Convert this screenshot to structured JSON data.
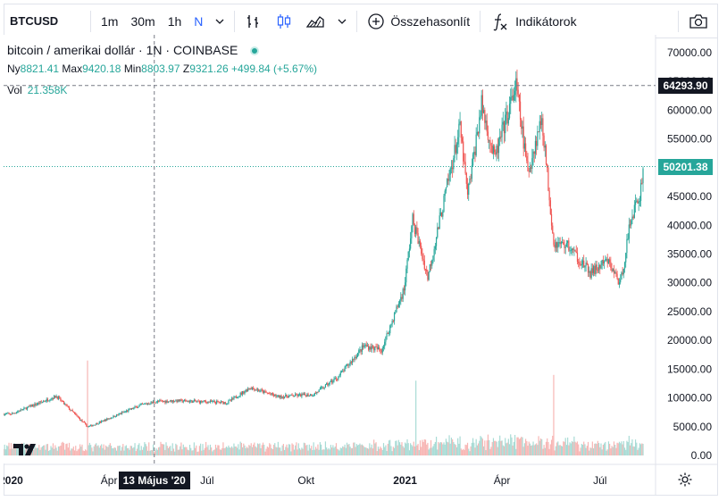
{
  "toolbar": {
    "symbol": "BTCUSD",
    "intervals": [
      "1m",
      "30m",
      "1h",
      "N"
    ],
    "active_interval": "N",
    "compare_label": "Összehasonlít",
    "indicators_label": "Indikátorok",
    "icons": [
      "bar-style-icon",
      "candle-style-icon",
      "area-style-icon",
      "chevron-down-icon",
      "plus-circle-icon",
      "fx-icon",
      "camera-icon"
    ]
  },
  "legend": {
    "title": "bitcoin / amerikai dollár · 1N · COINBASE",
    "open_label": "Ny",
    "open": "8821.41",
    "high_label": "Max",
    "high": "9420.18",
    "low_label": "Min",
    "low": "8803.97",
    "close_label": "Z",
    "close": "9321.26",
    "change": "+499.84 (+5.67%)",
    "vol_label": "Vol",
    "vol": "21.358K"
  },
  "badges": {
    "high_price": "64293.90",
    "last_price": "50201.38",
    "crosshair_date": "13 Május '20"
  },
  "colors": {
    "up": "#26a69a",
    "down": "#ef5350",
    "vol_up": "#a8dbd5",
    "vol_down": "#f7b6b4",
    "high_badge": "#131722",
    "last_badge": "#26a69a"
  },
  "chart_data": {
    "type": "candlestick",
    "y_axis_ticks": [
      "70000.00",
      "65000.00",
      "60000.00",
      "55000.00",
      "50000.00",
      "45000.00",
      "40000.00",
      "35000.00",
      "30000.00",
      "25000.00",
      "20000.00",
      "15000.00",
      "10000.00",
      "5000.00",
      "0.00"
    ],
    "y_ticks_values": [
      70000,
      65000,
      60000,
      55000,
      50000,
      45000,
      40000,
      35000,
      30000,
      25000,
      20000,
      15000,
      10000,
      5000,
      0
    ],
    "ylim": [
      0,
      70000
    ],
    "x_axis_labels": [
      "2020",
      "Ápr",
      "Júl",
      "Okt",
      "2021",
      "Ápr",
      "Júl"
    ],
    "x_start": "2019-12-25",
    "x_end": "2021-08-10",
    "series": [
      {
        "name": "BTCUSD",
        "key_points": [
          [
            "2020-01-01",
            7200
          ],
          [
            "2020-02-12",
            10300
          ],
          [
            "2020-03-12",
            5000
          ],
          [
            "2020-03-16",
            5200
          ],
          [
            "2020-04-30",
            8700
          ],
          [
            "2020-05-13",
            9321
          ],
          [
            "2020-06-01",
            9500
          ],
          [
            "2020-07-20",
            9200
          ],
          [
            "2020-08-10",
            11800
          ],
          [
            "2020-09-05",
            10200
          ],
          [
            "2020-10-08",
            10600
          ],
          [
            "2020-10-31",
            13700
          ],
          [
            "2020-11-24",
            19100
          ],
          [
            "2020-12-10",
            18300
          ],
          [
            "2020-12-31",
            29000
          ],
          [
            "2021-01-08",
            41000
          ],
          [
            "2021-01-22",
            31000
          ],
          [
            "2021-02-08",
            46000
          ],
          [
            "2021-02-21",
            57000
          ],
          [
            "2021-02-28",
            45000
          ],
          [
            "2021-03-13",
            61000
          ],
          [
            "2021-03-25",
            51500
          ],
          [
            "2021-04-14",
            64293
          ],
          [
            "2021-04-25",
            49000
          ],
          [
            "2021-05-08",
            58800
          ],
          [
            "2021-05-19",
            37000
          ],
          [
            "2021-06-01",
            36500
          ],
          [
            "2021-06-22",
            31700
          ],
          [
            "2021-07-08",
            33800
          ],
          [
            "2021-07-20",
            29800
          ],
          [
            "2021-07-30",
            41500
          ],
          [
            "2021-08-07",
            45000
          ],
          [
            "2021-08-10",
            50201
          ]
        ]
      }
    ],
    "volume_spikes": [
      [
        "2020-03-12",
        16500
      ],
      [
        "2021-01-11",
        13000
      ],
      [
        "2021-05-19",
        14000
      ]
    ],
    "high_line": 64293.9,
    "last_line": 50201.38,
    "crosshair_x": "2020-05-13"
  }
}
